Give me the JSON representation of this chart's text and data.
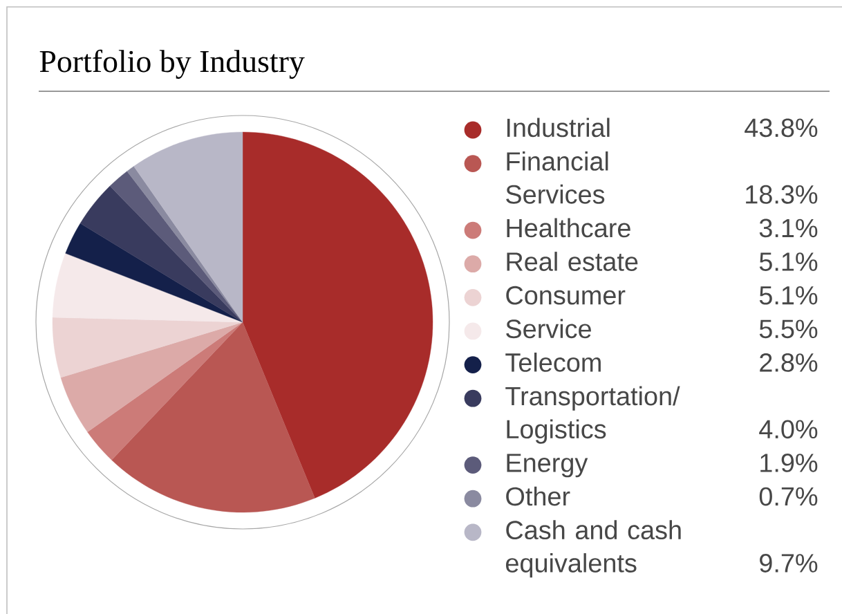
{
  "chart_data": {
    "type": "pie",
    "title": "Portfolio by Industry",
    "categories": [
      "Industrial",
      "Financial Services",
      "Healthcare",
      "Real estate",
      "Consumer",
      "Service",
      "Telecom",
      "Transportation/ Logistics",
      "Energy",
      "Other",
      "Cash and cash equivalents"
    ],
    "values": [
      43.8,
      18.3,
      3.1,
      5.1,
      5.1,
      5.5,
      2.8,
      4.0,
      1.9,
      0.7,
      9.7
    ],
    "value_labels": [
      "43.8%",
      "18.3%",
      "3.1%",
      "5.1%",
      "5.1%",
      "5.5%",
      "2.8%",
      "4.0%",
      "1.9%",
      "0.7%",
      "9.7%"
    ],
    "colors": [
      "#a82c2a",
      "#b95753",
      "#cc7b78",
      "#dcaaa8",
      "#ecd3d3",
      "#f5e9ea",
      "#14204a",
      "#393b5e",
      "#5c5b7a",
      "#8a8aa0",
      "#b8b7c7"
    ],
    "legend": "right"
  }
}
